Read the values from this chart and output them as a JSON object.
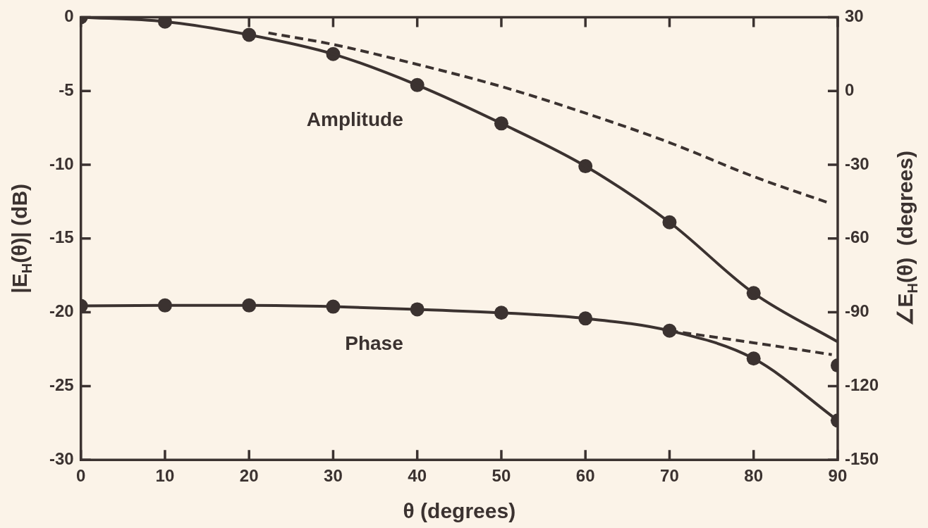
{
  "chart_data": {
    "type": "line",
    "xlabel": "θ (degrees)",
    "ylabel": "|E$_{H}$(θ)| (dB)",
    "y2label": "∠E$_{H}$(θ)  (degrees)",
    "xlim": [
      0,
      90
    ],
    "xticks": [
      0,
      10,
      20,
      30,
      40,
      50,
      60,
      70,
      80,
      90
    ],
    "ylim": [
      -30,
      0
    ],
    "yticks": [
      0,
      -5,
      -10,
      -15,
      -20,
      -25,
      -30
    ],
    "y2lim": [
      -150,
      30
    ],
    "y2ticks": [
      30,
      0,
      -30,
      -60,
      -90,
      -120,
      -150
    ],
    "grid": false,
    "legend": false,
    "marker": "none",
    "line_style": "solid",
    "series": [
      {
        "name": "Amplitude",
        "color": "#3b3230",
        "x": [
          0,
          10,
          20,
          30,
          40,
          50,
          60,
          70,
          80,
          90
        ],
        "values": [
          0,
          -0.3,
          -1.2,
          -2.5,
          -4.6,
          -7.2,
          -10.1,
          -13.9,
          -18.7,
          -22.0
        ]
      },
      {
        "type": "scatter",
        "color": "#3b3230",
        "marker": "circle",
        "x": [
          0,
          10,
          20,
          30,
          40,
          50,
          60,
          70,
          80,
          90
        ],
        "values": [
          0,
          -0.3,
          -1.2,
          -2.5,
          -4.6,
          -7.2,
          -10.1,
          -13.9,
          -18.7,
          -23.6
        ]
      },
      {
        "color": "#3b3230",
        "line_style": "dashed",
        "x": [
          22.3,
          30,
          40,
          50,
          60,
          70,
          80,
          89
        ],
        "values": [
          -1.07,
          -1.85,
          -3.2,
          -4.7,
          -6.5,
          -8.5,
          -10.8,
          -12.6
        ]
      },
      {
        "name": "Phase",
        "color": "#3b3230",
        "axis": "y2",
        "marker": "circle",
        "x": [
          0,
          10,
          20,
          30,
          40,
          50,
          60,
          70,
          80,
          90
        ],
        "values": [
          -87.4,
          -87.2,
          -87.2,
          -87.7,
          -88.8,
          -90.2,
          -92.5,
          -97.5,
          -108.8,
          -134
        ]
      },
      {
        "color": "#3b3230",
        "axis": "y2",
        "line_style": "dashed",
        "x": [
          70,
          80,
          89.3
        ],
        "values": [
          -97.5,
          -102.4,
          -107.2
        ]
      }
    ]
  }
}
